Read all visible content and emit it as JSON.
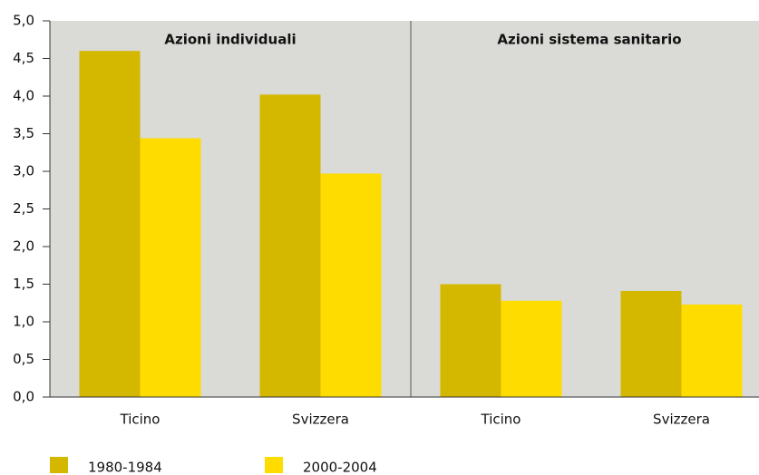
{
  "chart_data": {
    "type": "bar",
    "panels": [
      "Azioni individuali",
      "Azioni sistema sanitario"
    ],
    "categories": [
      "Ticino",
      "Svizzera",
      "Ticino",
      "Svizzera"
    ],
    "series": [
      {
        "name": "1980-1984",
        "color": "#d4b800",
        "values": [
          4.6,
          4.02,
          1.5,
          1.41
        ]
      },
      {
        "name": "2000-2004",
        "color": "#ffdc00",
        "values": [
          3.44,
          2.97,
          1.28,
          1.23
        ]
      }
    ],
    "ylim": [
      0,
      5
    ],
    "yticks": [
      {
        "value": 0,
        "label": "0,0"
      },
      {
        "value": 0.5,
        "label": "0,5"
      },
      {
        "value": 1,
        "label": "1,0"
      },
      {
        "value": 1.5,
        "label": "1,5"
      },
      {
        "value": 2,
        "label": "2,0"
      },
      {
        "value": 2.5,
        "label": "2,5"
      },
      {
        "value": 3,
        "label": "3,0"
      },
      {
        "value": 3.5,
        "label": "3,5"
      },
      {
        "value": 4,
        "label": "4,0"
      },
      {
        "value": 4.5,
        "label": "4,5"
      },
      {
        "value": 5,
        "label": "5,0"
      }
    ]
  }
}
